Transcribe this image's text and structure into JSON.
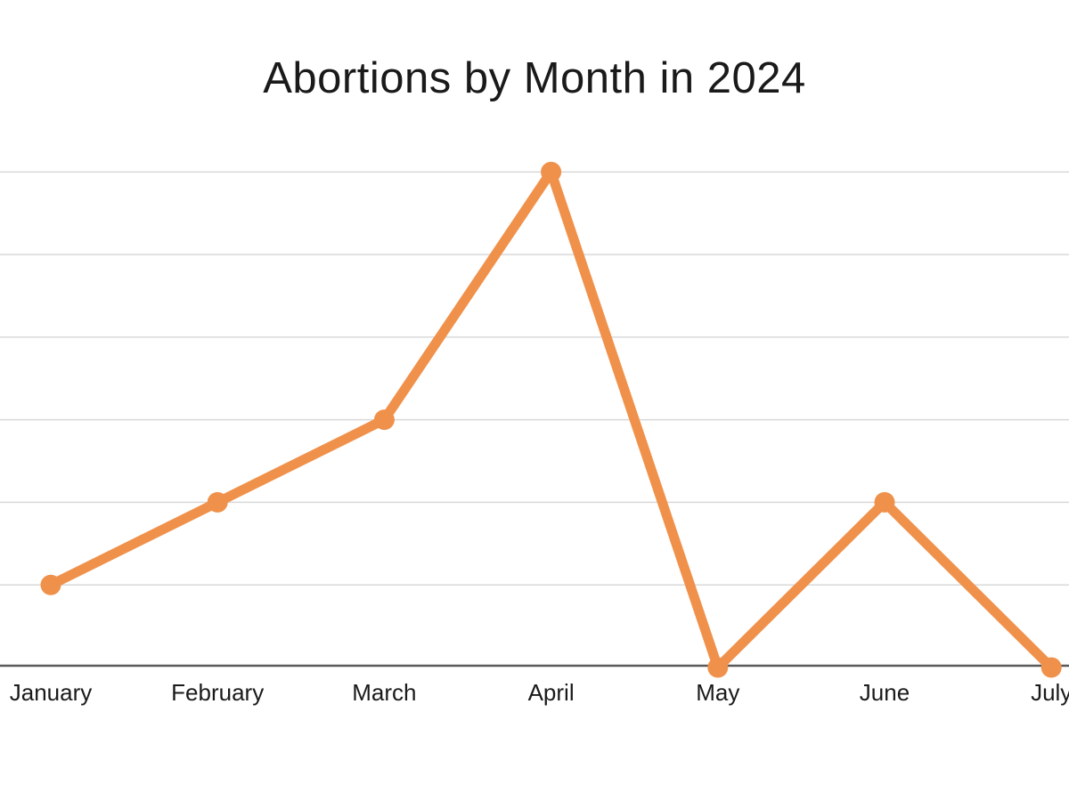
{
  "page": {
    "background_color": "#ffffff"
  },
  "chart_data": {
    "type": "line",
    "title": "Abortions by Month in 2024",
    "categories": [
      "January",
      "February",
      "March",
      "April",
      "May",
      "June",
      "July"
    ],
    "series": [
      {
        "name": "Abortions",
        "values": [
          1,
          2,
          3,
          6,
          0,
          2,
          0
        ]
      }
    ],
    "xlabel": "",
    "ylabel": "",
    "ylim": [
      0,
      6
    ],
    "y_axis_labels_visible": false,
    "gridlines": "horizontal",
    "gridline_count": 6,
    "legend_position": "none",
    "line_color": "#F0914B",
    "marker_shape": "circle",
    "gridline_color": "#D9D9D9",
    "axis_line_color": "#595959",
    "text_color": "#1A1A1A"
  }
}
